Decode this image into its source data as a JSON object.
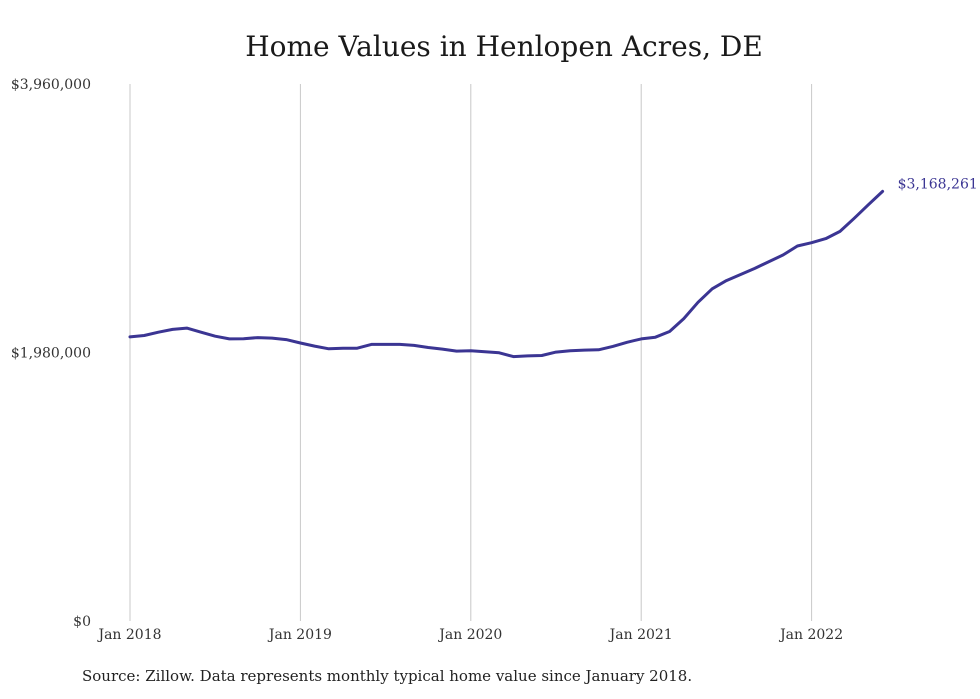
{
  "title": "Home Values in Henlopen Acres, DE",
  "source": "Source: Zillow. Data represents monthly typical home value since January 2018.",
  "colors": {
    "line": "#3b3593",
    "grid": "#c8c8c8"
  },
  "chart_data": {
    "type": "line",
    "title": "Home Values in Henlopen Acres, DE",
    "xlabel": "",
    "ylabel": "",
    "x_start": "Jan 2018",
    "x_ticks": [
      "Jan 2018",
      "Jan 2019",
      "Jan 2020",
      "Jan 2021",
      "Jan 2022"
    ],
    "y_ticks": [
      "$0",
      "$1,980,000",
      "$3,960,000"
    ],
    "ylim": [
      0,
      3960000
    ],
    "grid": "vertical",
    "end_label": "$3,168,261",
    "series": [
      {
        "values": [
          2095000,
          2105000,
          2130000,
          2150000,
          2160000,
          2130000,
          2100000,
          2080000,
          2082000,
          2090000,
          2086000,
          2075000,
          2050000,
          2027000,
          2007000,
          2012000,
          2012000,
          2040000,
          2040000,
          2040000,
          2032000,
          2017000,
          2005000,
          1990000,
          1993000,
          1985000,
          1978000,
          1950000,
          1955000,
          1958000,
          1983000,
          1993000,
          1998000,
          2000000,
          2025000,
          2055000,
          2080000,
          2093000,
          2135000,
          2230000,
          2350000,
          2450000,
          2510000,
          2555000,
          2600000,
          2650000,
          2700000,
          2765000,
          2790000,
          2820000,
          2873000,
          2970000,
          3070000,
          3168261
        ]
      }
    ]
  }
}
